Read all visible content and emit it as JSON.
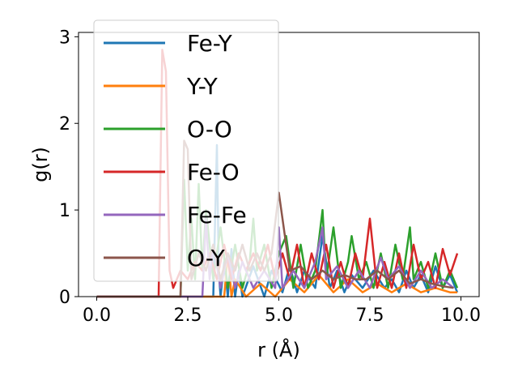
{
  "chart_data": {
    "type": "line",
    "title": "",
    "xlabel": "r (Å)",
    "ylabel": "g(r)",
    "xlim": [
      -0.5,
      10.5
    ],
    "ylim": [
      0,
      3.05
    ],
    "xticks": [
      0.0,
      2.5,
      5.0,
      7.5,
      10.0
    ],
    "xtick_labels": [
      "0.0",
      "2.5",
      "5.0",
      "7.5",
      "10.0"
    ],
    "yticks": [
      0,
      1,
      2,
      3
    ],
    "ytick_labels": [
      "0",
      "1",
      "2",
      "3"
    ],
    "grid": false,
    "legend_position": "top-left",
    "series": [
      {
        "name": "Fe-Y",
        "color": "#1f77b4",
        "x": [
          0,
          3.2,
          3.3,
          3.35,
          3.4,
          3.5,
          3.6,
          3.7,
          3.8,
          3.9,
          4.0,
          4.3,
          4.6,
          4.8,
          5.1,
          5.3,
          5.5,
          5.7,
          6.0,
          6.2,
          6.4,
          6.6,
          6.8,
          7.0,
          7.3,
          7.6,
          7.9,
          8.1,
          8.3,
          8.5,
          8.7,
          8.9,
          9.1,
          9.3,
          9.5,
          9.7,
          9.9
        ],
        "y": [
          0,
          0,
          1.75,
          0.3,
          0,
          0.4,
          0,
          0.55,
          0,
          0.3,
          0,
          0.35,
          0,
          0.3,
          0.05,
          0.35,
          0.05,
          0.3,
          0.1,
          0.7,
          0.1,
          0.3,
          0.05,
          0.25,
          0.1,
          0.3,
          0.1,
          0.2,
          0.05,
          0.3,
          0.1,
          0.25,
          0.05,
          0.35,
          0.1,
          0.25,
          0.05
        ]
      },
      {
        "name": "Y-Y",
        "color": "#ff7f0e",
        "x": [
          0,
          3.5,
          3.6,
          3.7,
          3.8,
          4.1,
          4.5,
          4.9,
          5.3,
          5.7,
          6.1,
          6.5,
          6.9,
          7.3,
          7.7,
          8.1,
          8.5,
          8.9,
          9.3,
          9.7,
          9.9
        ],
        "y": [
          0,
          0,
          0.5,
          0,
          0.2,
          0,
          0.15,
          0,
          0.2,
          0.05,
          0.25,
          0.05,
          0.2,
          0.05,
          0.15,
          0.05,
          0.15,
          0.05,
          0.1,
          0.05,
          0.05
        ]
      },
      {
        "name": "O-O",
        "color": "#2ca02c",
        "x": [
          0,
          2.3,
          2.4,
          2.5,
          2.6,
          2.7,
          2.8,
          2.9,
          3.0,
          3.2,
          3.4,
          3.6,
          3.8,
          4.0,
          4.2,
          4.3,
          4.4,
          4.6,
          4.8,
          5.0,
          5.2,
          5.4,
          5.6,
          5.8,
          6.0,
          6.2,
          6.3,
          6.5,
          6.7,
          6.9,
          7.0,
          7.2,
          7.4,
          7.6,
          7.8,
          8.0,
          8.2,
          8.4,
          8.6,
          8.7,
          8.9,
          9.1,
          9.3,
          9.5,
          9.7,
          9.9
        ],
        "y": [
          0,
          0,
          1.35,
          0.3,
          0.9,
          0.2,
          1.3,
          0.3,
          1.0,
          0.2,
          0.8,
          0.1,
          0.6,
          0.1,
          0.4,
          0.9,
          0.3,
          0.6,
          0.1,
          0.5,
          0.7,
          0.1,
          0.6,
          0.1,
          0.3,
          1.0,
          0.2,
          0.8,
          0.1,
          0.4,
          0.7,
          0.2,
          0.4,
          0.1,
          0.5,
          0.1,
          0.6,
          0.2,
          0.8,
          0.2,
          0.4,
          0.1,
          0.5,
          0.1,
          0.3,
          0.1
        ]
      },
      {
        "name": "Fe-O",
        "color": "#d62728",
        "x": [
          0,
          1.7,
          1.8,
          1.9,
          2.0,
          2.1,
          2.3,
          2.5,
          2.7,
          2.9,
          3.1,
          3.3,
          3.5,
          3.7,
          3.9,
          4.1,
          4.3,
          4.5,
          4.7,
          4.9,
          5.1,
          5.3,
          5.5,
          5.7,
          5.9,
          6.1,
          6.3,
          6.5,
          6.7,
          6.9,
          7.1,
          7.3,
          7.5,
          7.7,
          7.9,
          8.1,
          8.3,
          8.5,
          8.7,
          8.9,
          9.1,
          9.3,
          9.5,
          9.7,
          9.9
        ],
        "y": [
          0,
          0,
          2.85,
          2.6,
          0.3,
          0.1,
          0.3,
          0.2,
          0.4,
          0.3,
          0.5,
          0.2,
          0.6,
          0.2,
          0.5,
          0.3,
          0.5,
          0.3,
          0.6,
          0.2,
          0.5,
          0.2,
          0.6,
          0.1,
          0.5,
          0.2,
          0.6,
          0.1,
          0.4,
          0.1,
          0.5,
          0.2,
          0.9,
          0.1,
          0.4,
          0.1,
          0.5,
          0.1,
          0.6,
          0.2,
          0.4,
          0.1,
          0.55,
          0.25,
          0.5
        ]
      },
      {
        "name": "Fe-Fe",
        "color": "#9467bd",
        "x": [
          0,
          2.9,
          3.0,
          3.1,
          3.2,
          3.4,
          3.6,
          3.8,
          4.0,
          4.3,
          4.6,
          4.9,
          5.0,
          5.1,
          5.4,
          5.7,
          6.0,
          6.2,
          6.3,
          6.6,
          6.9,
          7.2,
          7.5,
          7.8,
          8.0,
          8.3,
          8.6,
          8.9,
          9.2,
          9.5,
          9.8
        ],
        "y": [
          0,
          0,
          0.9,
          0.2,
          0.6,
          0.1,
          0.5,
          0.1,
          0.4,
          0.1,
          0.3,
          0.1,
          0.8,
          0.1,
          0.3,
          0.1,
          0.4,
          0.8,
          0.2,
          0.35,
          0.1,
          0.3,
          0.1,
          0.45,
          0.2,
          0.35,
          0.1,
          0.3,
          0.1,
          0.2,
          0.1
        ]
      },
      {
        "name": "O-Y",
        "color": "#8c564b",
        "x": [
          0,
          2.3,
          2.4,
          2.5,
          2.6,
          2.8,
          3.0,
          3.2,
          3.4,
          3.6,
          3.8,
          4.0,
          4.2,
          4.4,
          4.6,
          4.8,
          5.0,
          5.3,
          5.6,
          5.9,
          6.2,
          6.5,
          6.8,
          7.1,
          7.4,
          7.7,
          8.0,
          8.3,
          8.6,
          8.9,
          9.2,
          9.5,
          9.8
        ],
        "y": [
          0,
          0,
          1.8,
          1.7,
          0.2,
          0.5,
          0.3,
          0.6,
          0.2,
          0.5,
          0.3,
          0.6,
          0.3,
          0.5,
          0.3,
          0.5,
          1.2,
          0.3,
          0.35,
          0.2,
          0.3,
          0.2,
          0.25,
          0.2,
          0.2,
          0.3,
          0.2,
          0.3,
          0.15,
          0.2,
          0.15,
          0.12,
          0.1
        ]
      }
    ]
  }
}
